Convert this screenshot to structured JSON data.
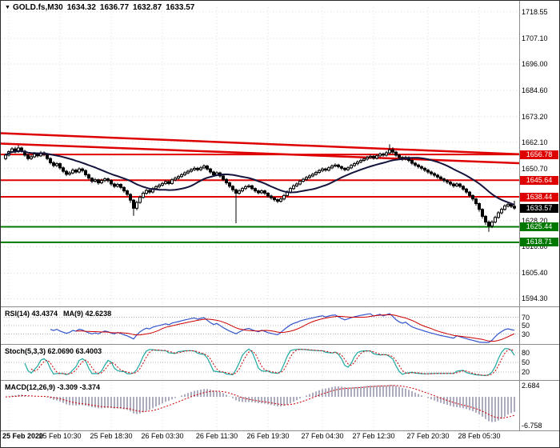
{
  "header": {
    "marker": "▼",
    "symbol_label": "GOLD.fs,M30",
    "open": "1634.32",
    "high": "1636.77",
    "low": "1632.87",
    "close": "1633.57"
  },
  "colors": {
    "background": "#FFFFFF",
    "grid": "#D8D8D8",
    "separator": "#8C8C8C",
    "candle": "#000000",
    "ma_line": "#14143C",
    "resistance": "#DE0000",
    "support": "#007800",
    "current_price_bg": "#000000",
    "badge_text": "#FFFFFF",
    "rsi_line": "#3355CC",
    "rsi_ma_line": "#CC0000",
    "stoch_line": "#1FA8A0",
    "stoch_signal_line": "#CC0000",
    "macd_histogram": "#ACACBE",
    "macd_signal_line": "#CC0000",
    "axis_text": "#000000"
  },
  "chart_data": {
    "type": "candlestick",
    "title": "GOLD.fs,M30",
    "timeframe": "M30",
    "ohlc_display": {
      "open": 1634.32,
      "high": 1636.77,
      "low": 1632.87,
      "close": 1633.57
    },
    "price_scale": {
      "top": 1720.6,
      "bottom": 1591.3
    },
    "y_axis_labels": [
      "1718.55",
      "1707.10",
      "1696.00",
      "1684.60",
      "1673.20",
      "1662.10",
      "1650.70",
      "1628.20",
      "1616.80",
      "1605.40",
      "1594.30"
    ],
    "x_labels": [
      {
        "label": "25 Feb 2020",
        "bar": 1
      },
      {
        "label": "25 Feb 10:30",
        "bar": 17
      },
      {
        "label": "25 Feb 18:30",
        "bar": 33
      },
      {
        "label": "26 Feb 03:30",
        "bar": 49
      },
      {
        "label": "26 Feb 11:30",
        "bar": 66
      },
      {
        "label": "26 Feb 19:30",
        "bar": 82
      },
      {
        "label": "27 Feb 04:30",
        "bar": 99
      },
      {
        "label": "27 Feb 12:30",
        "bar": 115
      },
      {
        "label": "27 Feb 20:30",
        "bar": 132
      },
      {
        "label": "28 Feb 05:30",
        "bar": 148
      }
    ],
    "levels": [
      {
        "label": "1656.78",
        "value": 1656.78,
        "kind": "resistance"
      },
      {
        "label": "1645.64",
        "value": 1645.64,
        "kind": "resistance"
      },
      {
        "label": "1638.44",
        "value": 1638.44,
        "kind": "resistance"
      },
      {
        "label": "1633.57",
        "value": 1633.57,
        "kind": "current"
      },
      {
        "label": "1625.44",
        "value": 1625.44,
        "kind": "support"
      },
      {
        "label": "1618.71",
        "value": 1618.71,
        "kind": "support"
      }
    ],
    "trendlines": [
      {
        "start_price": 1666.0,
        "end_price": 1656.9
      },
      {
        "start_price": 1661.5,
        "end_price": 1653.0
      }
    ],
    "ma_period": 20,
    "candles": [
      [
        1655.0,
        1657.2,
        1654.3,
        1656.5
      ],
      [
        1656.5,
        1658.6,
        1655.9,
        1658.0
      ],
      [
        1658.0,
        1660.0,
        1657.4,
        1659.2
      ],
      [
        1659.2,
        1660.1,
        1657.3,
        1658.0
      ],
      [
        1658.0,
        1660.8,
        1657.5,
        1659.6
      ],
      [
        1659.6,
        1660.2,
        1657.6,
        1658.2
      ],
      [
        1658.2,
        1658.8,
        1655.8,
        1656.5
      ],
      [
        1656.5,
        1657.1,
        1654.2,
        1655.0
      ],
      [
        1655.0,
        1656.6,
        1654.4,
        1655.8
      ],
      [
        1655.8,
        1657.8,
        1655.2,
        1657.0
      ],
      [
        1657.0,
        1657.7,
        1655.5,
        1656.2
      ],
      [
        1656.2,
        1658.3,
        1655.7,
        1657.5
      ],
      [
        1657.5,
        1658.1,
        1656.0,
        1656.8
      ],
      [
        1656.8,
        1657.3,
        1654.3,
        1655.0
      ],
      [
        1655.0,
        1655.6,
        1652.5,
        1653.2
      ],
      [
        1653.2,
        1653.9,
        1651.2,
        1652.0
      ],
      [
        1652.0,
        1653.5,
        1651.3,
        1652.8
      ],
      [
        1652.8,
        1653.3,
        1650.2,
        1651.0
      ],
      [
        1651.0,
        1651.6,
        1648.7,
        1649.5
      ],
      [
        1649.5,
        1650.1,
        1647.4,
        1648.2
      ],
      [
        1648.2,
        1649.6,
        1647.6,
        1648.8
      ],
      [
        1648.8,
        1650.8,
        1648.2,
        1650.0
      ],
      [
        1650.0,
        1650.6,
        1648.5,
        1649.2
      ],
      [
        1649.2,
        1651.2,
        1648.6,
        1650.5
      ],
      [
        1650.5,
        1651.1,
        1649.0,
        1649.8
      ],
      [
        1649.8,
        1650.3,
        1647.2,
        1648.0
      ],
      [
        1648.0,
        1648.6,
        1645.8,
        1646.5
      ],
      [
        1646.5,
        1647.0,
        1644.4,
        1645.2
      ],
      [
        1645.2,
        1646.6,
        1644.6,
        1645.8
      ],
      [
        1645.8,
        1646.3,
        1643.7,
        1644.5
      ],
      [
        1644.5,
        1646.3,
        1643.9,
        1645.5
      ],
      [
        1645.5,
        1646.9,
        1644.8,
        1646.2
      ],
      [
        1646.2,
        1646.8,
        1644.7,
        1645.5
      ],
      [
        1645.5,
        1646.0,
        1643.2,
        1644.0
      ],
      [
        1644.0,
        1644.6,
        1642.2,
        1643.0
      ],
      [
        1643.0,
        1644.5,
        1642.4,
        1643.8
      ],
      [
        1643.8,
        1644.3,
        1641.7,
        1642.5
      ],
      [
        1642.5,
        1643.0,
        1640.2,
        1641.0
      ],
      [
        1641.0,
        1641.6,
        1638.6,
        1639.5
      ],
      [
        1639.5,
        1640.0,
        1635.8,
        1637.0
      ],
      [
        1637.0,
        1637.5,
        1630.2,
        1633.5
      ],
      [
        1633.5,
        1636.8,
        1632.6,
        1636.0
      ],
      [
        1636.0,
        1639.0,
        1635.4,
        1638.2
      ],
      [
        1638.2,
        1640.8,
        1637.6,
        1640.0
      ],
      [
        1640.0,
        1641.9,
        1639.3,
        1641.2
      ],
      [
        1641.2,
        1641.8,
        1639.7,
        1640.5
      ],
      [
        1640.5,
        1642.7,
        1639.9,
        1642.0
      ],
      [
        1642.0,
        1643.5,
        1641.4,
        1642.8
      ],
      [
        1642.8,
        1644.2,
        1642.1,
        1643.5
      ],
      [
        1643.5,
        1644.9,
        1642.9,
        1644.2
      ],
      [
        1644.2,
        1645.7,
        1643.6,
        1645.0
      ],
      [
        1645.0,
        1645.6,
        1643.5,
        1644.2
      ],
      [
        1644.2,
        1646.5,
        1643.7,
        1645.8
      ],
      [
        1645.8,
        1647.2,
        1645.2,
        1646.5
      ],
      [
        1646.5,
        1647.9,
        1645.9,
        1647.2
      ],
      [
        1647.2,
        1648.7,
        1646.6,
        1648.0
      ],
      [
        1648.0,
        1649.5,
        1647.4,
        1648.8
      ],
      [
        1648.8,
        1650.2,
        1648.2,
        1649.5
      ],
      [
        1649.5,
        1650.9,
        1648.9,
        1650.2
      ],
      [
        1650.2,
        1651.6,
        1649.6,
        1650.8
      ],
      [
        1650.8,
        1651.4,
        1649.5,
        1650.2
      ],
      [
        1650.2,
        1651.8,
        1649.6,
        1651.0
      ],
      [
        1651.0,
        1652.5,
        1650.4,
        1651.8
      ],
      [
        1651.8,
        1652.3,
        1649.8,
        1650.5
      ],
      [
        1650.5,
        1651.0,
        1648.4,
        1649.2
      ],
      [
        1649.2,
        1649.7,
        1647.2,
        1648.0
      ],
      [
        1648.0,
        1649.5,
        1647.4,
        1648.8
      ],
      [
        1648.8,
        1649.3,
        1646.7,
        1647.5
      ],
      [
        1647.5,
        1648.0,
        1645.2,
        1646.0
      ],
      [
        1646.0,
        1646.5,
        1643.7,
        1644.5
      ],
      [
        1644.5,
        1645.0,
        1642.2,
        1643.0
      ],
      [
        1643.0,
        1643.5,
        1640.6,
        1641.5
      ],
      [
        1641.5,
        1642.0,
        1627.0,
        1640.0
      ],
      [
        1640.0,
        1641.8,
        1639.3,
        1641.0
      ],
      [
        1641.0,
        1642.7,
        1640.4,
        1642.0
      ],
      [
        1642.0,
        1643.5,
        1641.4,
        1642.8
      ],
      [
        1642.8,
        1643.9,
        1642.2,
        1643.2
      ],
      [
        1643.2,
        1643.7,
        1641.3,
        1642.0
      ],
      [
        1642.0,
        1642.5,
        1640.2,
        1641.0
      ],
      [
        1641.0,
        1641.6,
        1639.5,
        1640.2
      ],
      [
        1640.2,
        1641.7,
        1639.6,
        1641.0
      ],
      [
        1641.0,
        1641.5,
        1639.2,
        1640.0
      ],
      [
        1640.0,
        1640.5,
        1638.0,
        1638.8
      ],
      [
        1638.8,
        1639.4,
        1637.2,
        1638.0
      ],
      [
        1638.0,
        1638.5,
        1636.4,
        1637.2
      ],
      [
        1637.2,
        1637.8,
        1635.7,
        1636.5
      ],
      [
        1636.5,
        1638.2,
        1635.9,
        1637.5
      ],
      [
        1637.5,
        1639.7,
        1636.9,
        1639.0
      ],
      [
        1639.0,
        1641.2,
        1638.4,
        1640.5
      ],
      [
        1640.5,
        1642.7,
        1639.9,
        1642.0
      ],
      [
        1642.0,
        1643.9,
        1641.4,
        1643.2
      ],
      [
        1643.2,
        1644.7,
        1642.6,
        1644.0
      ],
      [
        1644.0,
        1645.9,
        1643.4,
        1645.2
      ],
      [
        1645.2,
        1646.7,
        1644.6,
        1646.0
      ],
      [
        1646.0,
        1647.5,
        1645.4,
        1646.8
      ],
      [
        1646.8,
        1648.2,
        1646.2,
        1647.5
      ],
      [
        1647.5,
        1648.9,
        1646.9,
        1648.2
      ],
      [
        1648.2,
        1649.7,
        1647.6,
        1649.0
      ],
      [
        1649.0,
        1650.5,
        1648.4,
        1649.8
      ],
      [
        1649.8,
        1651.2,
        1649.1,
        1650.5
      ],
      [
        1650.5,
        1651.1,
        1649.3,
        1650.0
      ],
      [
        1650.0,
        1651.7,
        1649.4,
        1651.0
      ],
      [
        1651.0,
        1652.5,
        1650.4,
        1651.8
      ],
      [
        1651.8,
        1652.9,
        1651.2,
        1652.2
      ],
      [
        1652.2,
        1652.8,
        1650.8,
        1651.5
      ],
      [
        1651.5,
        1652.0,
        1650.0,
        1650.8
      ],
      [
        1650.8,
        1651.3,
        1649.5,
        1650.2
      ],
      [
        1650.2,
        1651.7,
        1649.6,
        1651.0
      ],
      [
        1651.0,
        1652.7,
        1650.4,
        1652.0
      ],
      [
        1652.0,
        1653.5,
        1651.4,
        1652.8
      ],
      [
        1652.8,
        1654.2,
        1652.1,
        1653.5
      ],
      [
        1653.5,
        1654.9,
        1652.9,
        1654.2
      ],
      [
        1654.2,
        1655.5,
        1653.6,
        1654.8
      ],
      [
        1654.8,
        1656.2,
        1654.1,
        1655.5
      ],
      [
        1655.5,
        1656.7,
        1654.9,
        1656.0
      ],
      [
        1656.0,
        1656.6,
        1654.5,
        1655.2
      ],
      [
        1655.2,
        1656.9,
        1654.6,
        1656.2
      ],
      [
        1656.2,
        1657.7,
        1655.6,
        1657.0
      ],
      [
        1657.0,
        1657.6,
        1655.8,
        1656.5
      ],
      [
        1656.5,
        1658.3,
        1655.9,
        1657.5
      ],
      [
        1657.5,
        1661.2,
        1656.9,
        1658.8
      ],
      [
        1658.8,
        1659.9,
        1657.0,
        1657.8
      ],
      [
        1657.8,
        1658.4,
        1655.7,
        1656.5
      ],
      [
        1656.5,
        1657.0,
        1654.7,
        1655.5
      ],
      [
        1655.5,
        1656.1,
        1654.0,
        1654.8
      ],
      [
        1654.8,
        1656.2,
        1654.2,
        1655.5
      ],
      [
        1655.5,
        1656.0,
        1653.4,
        1654.2
      ],
      [
        1654.2,
        1654.7,
        1652.2,
        1653.0
      ],
      [
        1653.0,
        1653.6,
        1651.4,
        1652.2
      ],
      [
        1652.2,
        1652.8,
        1650.7,
        1651.5
      ],
      [
        1651.5,
        1652.1,
        1650.0,
        1650.8
      ],
      [
        1650.8,
        1651.4,
        1649.2,
        1650.0
      ],
      [
        1650.0,
        1650.6,
        1648.4,
        1649.2
      ],
      [
        1649.2,
        1649.8,
        1647.7,
        1648.5
      ],
      [
        1648.5,
        1649.1,
        1647.0,
        1647.8
      ],
      [
        1647.8,
        1648.4,
        1646.2,
        1647.0
      ],
      [
        1647.0,
        1647.6,
        1645.4,
        1646.2
      ],
      [
        1646.2,
        1646.8,
        1644.7,
        1645.5
      ],
      [
        1645.5,
        1646.1,
        1644.0,
        1644.8
      ],
      [
        1644.8,
        1645.4,
        1643.2,
        1644.0
      ],
      [
        1644.0,
        1644.6,
        1642.4,
        1643.2
      ],
      [
        1643.2,
        1644.7,
        1642.6,
        1644.0
      ],
      [
        1644.0,
        1644.5,
        1642.2,
        1643.0
      ],
      [
        1643.0,
        1643.5,
        1641.0,
        1641.8
      ],
      [
        1641.8,
        1642.3,
        1639.7,
        1640.5
      ],
      [
        1640.5,
        1641.0,
        1638.2,
        1639.0
      ],
      [
        1639.0,
        1639.5,
        1636.6,
        1637.5
      ],
      [
        1637.5,
        1638.0,
        1634.6,
        1635.5
      ],
      [
        1635.5,
        1636.0,
        1632.0,
        1633.0
      ],
      [
        1633.0,
        1633.5,
        1629.0,
        1630.0
      ],
      [
        1630.0,
        1630.5,
        1626.3,
        1627.5
      ],
      [
        1627.5,
        1628.2,
        1623.3,
        1625.8
      ],
      [
        1625.8,
        1628.3,
        1624.9,
        1627.5
      ],
      [
        1627.5,
        1630.2,
        1626.9,
        1629.5
      ],
      [
        1629.5,
        1632.2,
        1628.9,
        1631.5
      ],
      [
        1631.5,
        1633.7,
        1630.8,
        1633.0
      ],
      [
        1633.0,
        1635.2,
        1632.4,
        1634.5
      ],
      [
        1634.5,
        1635.9,
        1633.8,
        1635.2
      ],
      [
        1635.2,
        1635.8,
        1633.6,
        1634.32
      ],
      [
        1634.32,
        1636.77,
        1632.87,
        1633.57
      ]
    ],
    "indicators": {
      "rsi": {
        "name": "RSI(14) 43.4374",
        "ma_name": "MA(9) 42.6238",
        "period": 14,
        "ma_period": 9,
        "levels": [
          "70",
          "50",
          "30"
        ],
        "scale_min": 10,
        "scale_max": 90
      },
      "stoch": {
        "name": "Stoch(5,3,3) 62.0690 63.4003",
        "k_period": 5,
        "slowing": 3,
        "d_period": 3,
        "levels": [
          "80",
          "50",
          "20"
        ],
        "scale_min": 0,
        "scale_max": 100
      },
      "macd": {
        "name": "MACD(12,26,9) -3.309 -3.374",
        "fast": 12,
        "slow": 26,
        "signal": 9,
        "axis_labels": [
          "2.684",
          "-6.758"
        ],
        "scale_min": -7.5,
        "scale_max": 3.4
      }
    }
  }
}
